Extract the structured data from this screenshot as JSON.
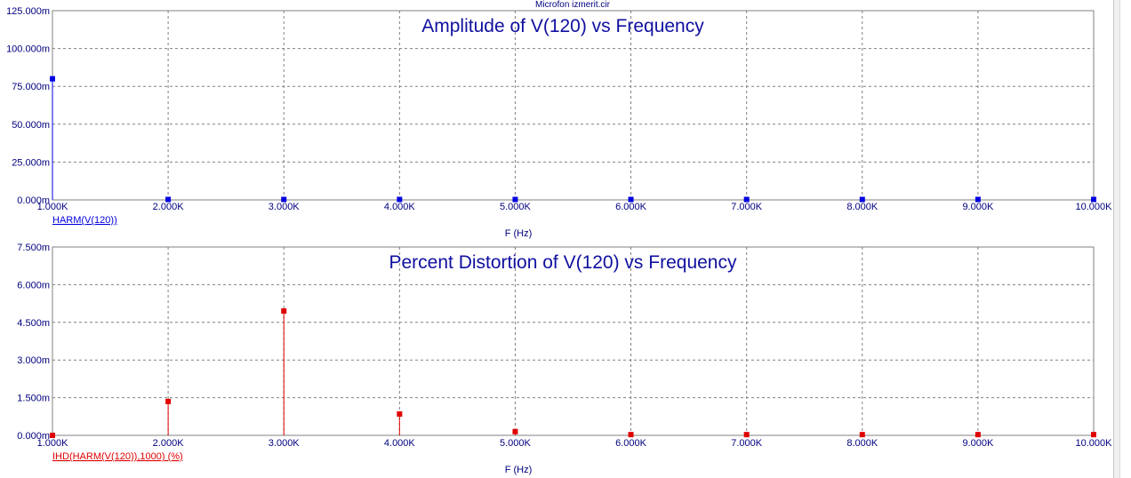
{
  "window": {
    "file_title": "Microfon izmerit.cir"
  },
  "colors": {
    "amplitude": "#0000e0",
    "distortion": "#e00000",
    "title": "#1010a0",
    "grid": "#808080"
  },
  "chart_data": [
    {
      "type": "stem",
      "title": "Amplitude of V(120) vs Frequency",
      "xlabel": "F (Hz)",
      "legend": "HARM(V(120))",
      "xlim": [
        1000,
        10000
      ],
      "ylim": [
        0,
        0.125
      ],
      "x_ticks": [
        "1.000K",
        "2.000K",
        "3.000K",
        "4.000K",
        "5.000K",
        "6.000K",
        "7.000K",
        "8.000K",
        "9.000K",
        "10.000K"
      ],
      "y_ticks": [
        "0.000m",
        "25.000m",
        "50.000m",
        "75.000m",
        "100.000m",
        "125.000m"
      ],
      "x": [
        1000,
        2000,
        3000,
        4000,
        5000,
        6000,
        7000,
        8000,
        9000,
        10000
      ],
      "values": [
        0.08,
        0.0003,
        0.0003,
        0.0003,
        0.0003,
        0.0003,
        0.0003,
        0.0003,
        0.0003,
        0.0003
      ]
    },
    {
      "type": "stem",
      "title": "Percent Distortion of V(120) vs Frequency",
      "xlabel": "F (Hz)",
      "legend": "IHD(HARM(V(120)),1000) (%)",
      "xlim": [
        1000,
        10000
      ],
      "ylim": [
        0,
        0.0075
      ],
      "x_ticks": [
        "1.000K",
        "2.000K",
        "3.000K",
        "4.000K",
        "5.000K",
        "6.000K",
        "7.000K",
        "8.000K",
        "9.000K",
        "10.000K"
      ],
      "y_ticks": [
        "0.000m",
        "1.500m",
        "3.000m",
        "4.500m",
        "6.000m",
        "7.500m"
      ],
      "x": [
        1000,
        2000,
        3000,
        4000,
        5000,
        6000,
        7000,
        8000,
        9000,
        10000
      ],
      "values": [
        0.0,
        0.00135,
        0.00495,
        0.00085,
        0.00015,
        3e-05,
        3e-05,
        3e-05,
        3e-05,
        3e-05
      ]
    }
  ]
}
